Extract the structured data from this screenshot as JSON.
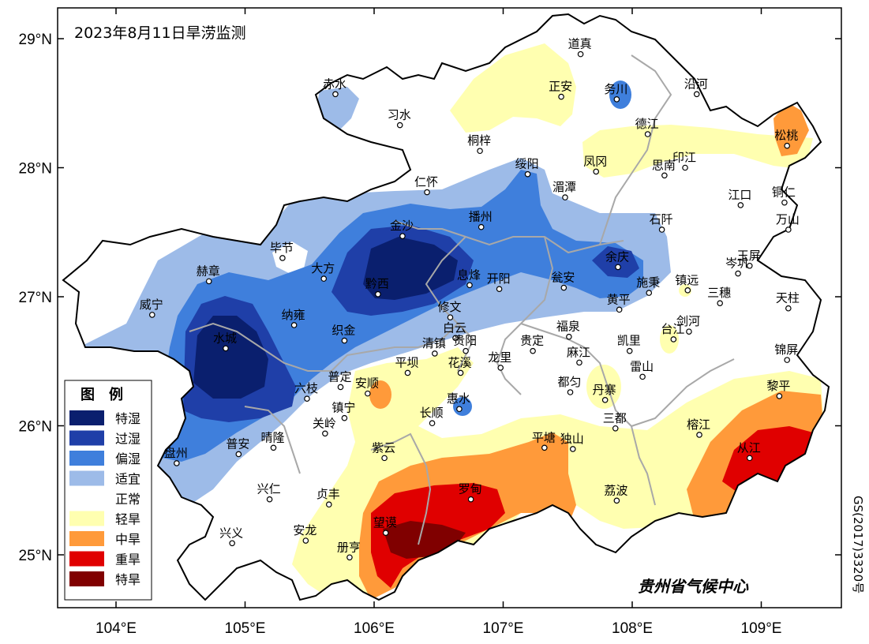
{
  "title": "2023年8月11日旱涝监测",
  "organization": "贵州省气候中心",
  "map_code": "GS(2017)3320号",
  "axes": {
    "x_ticks": [
      "104°E",
      "105°E",
      "106°E",
      "107°E",
      "108°E",
      "109°E"
    ],
    "y_ticks": [
      "29°N",
      "28°N",
      "27°N",
      "26°N",
      "25°N"
    ]
  },
  "legend": {
    "title": "图　例",
    "items": [
      {
        "label": "特湿",
        "color": "#0a1f6e"
      },
      {
        "label": "过湿",
        "color": "#1f3fa8"
      },
      {
        "label": "偏湿",
        "color": "#3f7fdc"
      },
      {
        "label": "适宜",
        "color": "#9dbbe8"
      },
      {
        "label": "正常",
        "color": "#ffffff"
      },
      {
        "label": "轻旱",
        "color": "#ffffb0"
      },
      {
        "label": "中旱",
        "color": "#ff9a3a"
      },
      {
        "label": "重旱",
        "color": "#e00000"
      },
      {
        "label": "特旱",
        "color": "#800000"
      }
    ]
  },
  "stations": [
    {
      "name": "道真",
      "lon": 107.6,
      "lat": 28.88
    },
    {
      "name": "赤水",
      "lon": 105.7,
      "lat": 28.57
    },
    {
      "name": "正安",
      "lon": 107.45,
      "lat": 28.55
    },
    {
      "name": "务川",
      "lon": 107.88,
      "lat": 28.53
    },
    {
      "name": "沿河",
      "lon": 108.5,
      "lat": 28.57
    },
    {
      "name": "习水",
      "lon": 106.2,
      "lat": 28.33
    },
    {
      "name": "德江",
      "lon": 108.12,
      "lat": 28.26
    },
    {
      "name": "桐梓",
      "lon": 106.82,
      "lat": 28.13
    },
    {
      "name": "松桃",
      "lon": 109.2,
      "lat": 28.17
    },
    {
      "name": "绥阳",
      "lon": 107.19,
      "lat": 27.95
    },
    {
      "name": "凤冈",
      "lon": 107.72,
      "lat": 27.97
    },
    {
      "name": "印江",
      "lon": 108.41,
      "lat": 28.0
    },
    {
      "name": "思南",
      "lon": 108.25,
      "lat": 27.94
    },
    {
      "name": "仁怀",
      "lon": 106.41,
      "lat": 27.81
    },
    {
      "name": "湄潭",
      "lon": 107.48,
      "lat": 27.77
    },
    {
      "name": "江口",
      "lon": 108.84,
      "lat": 27.71
    },
    {
      "name": "铜仁",
      "lon": 109.18,
      "lat": 27.73
    },
    {
      "name": "万山",
      "lon": 109.21,
      "lat": 27.52
    },
    {
      "name": "金沙",
      "lon": 106.22,
      "lat": 27.47
    },
    {
      "name": "播州",
      "lon": 106.83,
      "lat": 27.54
    },
    {
      "name": "石阡",
      "lon": 108.23,
      "lat": 27.52
    },
    {
      "name": "毕节",
      "lon": 105.29,
      "lat": 27.3
    },
    {
      "name": "余庆",
      "lon": 107.89,
      "lat": 27.23
    },
    {
      "name": "岑巩",
      "lon": 108.82,
      "lat": 27.18
    },
    {
      "name": "玉屏",
      "lon": 108.91,
      "lat": 27.24
    },
    {
      "name": "大方",
      "lon": 105.61,
      "lat": 27.14
    },
    {
      "name": "赫章",
      "lon": 104.72,
      "lat": 27.12
    },
    {
      "name": "息烽",
      "lon": 106.74,
      "lat": 27.09
    },
    {
      "name": "开阳",
      "lon": 106.97,
      "lat": 27.06
    },
    {
      "name": "瓮安",
      "lon": 107.47,
      "lat": 27.07
    },
    {
      "name": "施秉",
      "lon": 108.13,
      "lat": 27.03
    },
    {
      "name": "镇远",
      "lon": 108.43,
      "lat": 27.05
    },
    {
      "name": "黔西",
      "lon": 106.03,
      "lat": 27.02
    },
    {
      "name": "黄平",
      "lon": 107.9,
      "lat": 26.9
    },
    {
      "name": "三穗",
      "lon": 108.68,
      "lat": 26.95
    },
    {
      "name": "天柱",
      "lon": 109.21,
      "lat": 26.91
    },
    {
      "name": "威宁",
      "lon": 104.28,
      "lat": 26.86
    },
    {
      "name": "修文",
      "lon": 106.59,
      "lat": 26.84
    },
    {
      "name": "纳雍",
      "lon": 105.38,
      "lat": 26.78
    },
    {
      "name": "剑河",
      "lon": 108.44,
      "lat": 26.73
    },
    {
      "name": "福泉",
      "lon": 107.51,
      "lat": 26.69
    },
    {
      "name": "台江",
      "lon": 108.32,
      "lat": 26.67
    },
    {
      "name": "白云",
      "lon": 106.63,
      "lat": 26.68
    },
    {
      "name": "织金",
      "lon": 105.77,
      "lat": 26.66
    },
    {
      "name": "清镇",
      "lon": 106.47,
      "lat": 26.56
    },
    {
      "name": "贵阳",
      "lon": 106.71,
      "lat": 26.58
    },
    {
      "name": "贵定",
      "lon": 107.23,
      "lat": 26.58
    },
    {
      "name": "凯里",
      "lon": 107.98,
      "lat": 26.58
    },
    {
      "name": "锦屏",
      "lon": 109.2,
      "lat": 26.51
    },
    {
      "name": "水城",
      "lon": 104.85,
      "lat": 26.6
    },
    {
      "name": "麻江",
      "lon": 107.59,
      "lat": 26.49
    },
    {
      "name": "龙里",
      "lon": 106.98,
      "lat": 26.45
    },
    {
      "name": "花溪",
      "lon": 106.67,
      "lat": 26.41
    },
    {
      "name": "平坝",
      "lon": 106.26,
      "lat": 26.41
    },
    {
      "name": "雷山",
      "lon": 108.08,
      "lat": 26.38
    },
    {
      "name": "都匀",
      "lon": 107.52,
      "lat": 26.26
    },
    {
      "name": "普定",
      "lon": 105.74,
      "lat": 26.3
    },
    {
      "name": "安顺",
      "lon": 105.95,
      "lat": 26.25
    },
    {
      "name": "黎平",
      "lon": 109.14,
      "lat": 26.23
    },
    {
      "name": "六枝",
      "lon": 105.48,
      "lat": 26.21
    },
    {
      "name": "丹寨",
      "lon": 107.79,
      "lat": 26.2
    },
    {
      "name": "惠水",
      "lon": 106.66,
      "lat": 26.13
    },
    {
      "name": "镇宁",
      "lon": 105.77,
      "lat": 26.06
    },
    {
      "name": "长顺",
      "lon": 106.45,
      "lat": 26.02
    },
    {
      "name": "三都",
      "lon": 107.87,
      "lat": 25.98
    },
    {
      "name": "关岭",
      "lon": 105.62,
      "lat": 25.94
    },
    {
      "name": "榕江",
      "lon": 108.52,
      "lat": 25.93
    },
    {
      "name": "晴隆",
      "lon": 105.22,
      "lat": 25.83
    },
    {
      "name": "独山",
      "lon": 107.54,
      "lat": 25.82
    },
    {
      "name": "平塘",
      "lon": 107.32,
      "lat": 25.83
    },
    {
      "name": "普安",
      "lon": 104.95,
      "lat": 25.78
    },
    {
      "name": "紫云",
      "lon": 106.08,
      "lat": 25.75
    },
    {
      "name": "从江",
      "lon": 108.91,
      "lat": 25.75
    },
    {
      "name": "盘州",
      "lon": 104.47,
      "lat": 25.71
    },
    {
      "name": "兴仁",
      "lon": 105.19,
      "lat": 25.43
    },
    {
      "name": "贞丰",
      "lon": 105.65,
      "lat": 25.39
    },
    {
      "name": "罗甸",
      "lon": 106.75,
      "lat": 25.43
    },
    {
      "name": "荔波",
      "lon": 107.88,
      "lat": 25.42
    },
    {
      "name": "望谟",
      "lon": 106.09,
      "lat": 25.17
    },
    {
      "name": "安龙",
      "lon": 105.47,
      "lat": 25.11
    },
    {
      "name": "兴义",
      "lon": 104.9,
      "lat": 25.09
    },
    {
      "name": "册亨",
      "lon": 105.81,
      "lat": 24.98
    }
  ]
}
